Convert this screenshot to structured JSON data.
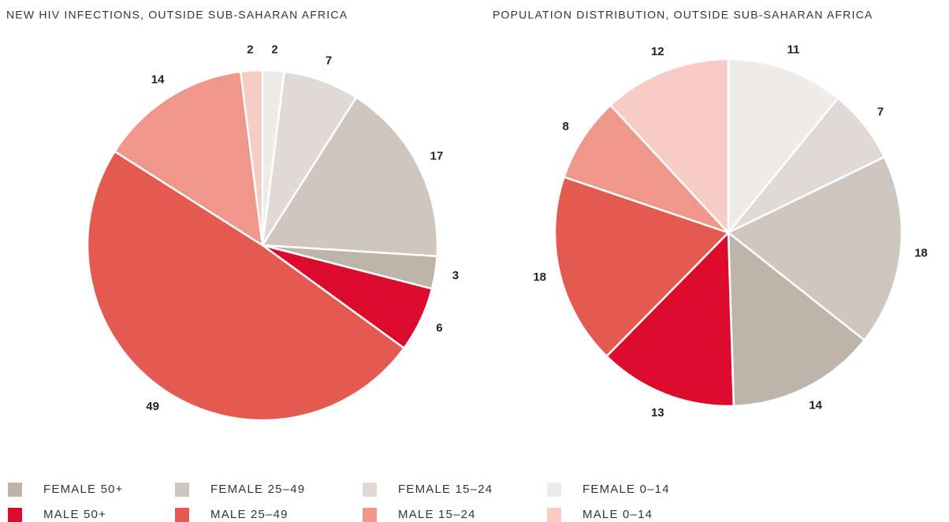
{
  "chart_data": [
    {
      "type": "pie",
      "title": "NEW HIV INFECTIONS, OUTSIDE SUB-SAHARAN AFRICA",
      "categories": [
        "FEMALE 0–14",
        "FEMALE 15–24",
        "FEMALE 25–49",
        "FEMALE 50+",
        "MALE 50+",
        "MALE 25–49",
        "MALE 15–24",
        "MALE 0–14"
      ],
      "values": [
        2,
        7,
        17,
        3,
        6,
        49,
        14,
        2
      ],
      "colors": [
        "#eeebe8",
        "#e0d9d5",
        "#cfc6bf",
        "#bfb4aa",
        "#dc0b2d",
        "#e55a50",
        "#ef978a",
        "#f7ccc4"
      ]
    },
    {
      "type": "pie",
      "title": "POPULATION DISTRIBUTION, OUTSIDE SUB-SAHARAN AFRICA",
      "categories": [
        "FEMALE 0–14",
        "FEMALE 15–24",
        "FEMALE 25–49",
        "FEMALE 50+",
        "MALE 50+",
        "MALE 25–49",
        "MALE 15–24",
        "MALE 0–14"
      ],
      "values": [
        11,
        7,
        18,
        14,
        13,
        18,
        8,
        12
      ],
      "colors": [
        "#eeebe8",
        "#e0d9d5",
        "#cfc6bf",
        "#bfb4aa",
        "#dc0b2d",
        "#e55a50",
        "#ef978a",
        "#f7ccc4"
      ]
    }
  ]
}
